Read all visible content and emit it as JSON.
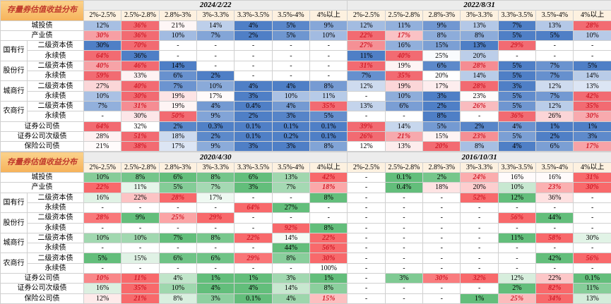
{
  "blocks": [
    {
      "title": "存量券估值收益分布",
      "scheme": {
        "low": "#4f7fc6",
        "high": "#f26b72"
      },
      "buckets": [
        "2%-2.5%",
        "2.5%-2.8%",
        "2.8%-3%",
        "3%-3.3%",
        "3.3%-3.5%",
        "3.5%-4%",
        "4%以上"
      ],
      "groups": [
        {
          "name": "城投债"
        },
        {
          "name": "产业债"
        },
        {
          "name": "国有行",
          "subs": [
            "二级资本债",
            "永续债"
          ]
        },
        {
          "name": "股份行",
          "subs": [
            "二级资本债",
            "永续债"
          ]
        },
        {
          "name": "城商行",
          "subs": [
            "二级资本债",
            "永续债"
          ]
        },
        {
          "name": "农商行",
          "subs": [
            "二级资本债",
            "永续债"
          ]
        },
        {
          "name": "证券公司债"
        },
        {
          "name": "证券公司次级债"
        },
        {
          "name": "保险公司债"
        }
      ],
      "panels": [
        {
          "date": "2024/2/22",
          "rows": [
            [
              "12%",
              "36%",
              "21%",
              "14%",
              "4%",
              "5%",
              "9%"
            ],
            [
              "30%",
              "36%",
              "10%",
              "7%",
              "2%",
              "5%",
              "10%"
            ],
            [
              "30%",
              "70%",
              "-",
              "-",
              "-",
              "-",
              "-"
            ],
            [
              "64%",
              "36%",
              "-",
              "-",
              "-",
              "-",
              "-"
            ],
            [
              "40%",
              "46%",
              "14%",
              "-",
              "-",
              "-",
              "-"
            ],
            [
              "59%",
              "33%",
              "6%",
              "2%",
              "-",
              "-",
              "-"
            ],
            [
              "27%",
              "40%",
              "7%",
              "10%",
              "4%",
              "4%",
              "8%"
            ],
            [
              "10%",
              "30%",
              "19%",
              "17%",
              "3%",
              "10%",
              "11%"
            ],
            [
              "7%",
              "31%",
              "19%",
              "4%",
              "0.4%",
              "4%",
              "35%"
            ],
            [
              "-",
              "30%",
              "50%",
              "9%",
              "2%",
              "3%",
              "5%"
            ],
            [
              "64%",
              "32%",
              "2%",
              "0.3%",
              "0.1%",
              "0.1%",
              "0.1%"
            ],
            [
              "28%",
              "51%",
              "18%",
              "2%",
              "0.1%",
              "0.2%",
              "0.1%"
            ],
            [
              "21%",
              "38%",
              "17%",
              "9%",
              "3%",
              "3%",
              "8%"
            ]
          ]
        },
        {
          "date": "2022/8/31",
          "rows": [
            [
              "12%",
              "11%",
              "9%",
              "13%",
              "7%",
              "13%",
              "28%"
            ],
            [
              "22%",
              "17%",
              "8%",
              "8%",
              "5%",
              "5%",
              "10%"
            ],
            [
              "27%",
              "16%",
              "15%",
              "13%",
              "29%",
              "-",
              "-"
            ],
            [
              "11%",
              "40%",
              "25%",
              "20%",
              "-",
              "-",
              "-"
            ],
            [
              "31%",
              "19%",
              "6%",
              "28%",
              "5%",
              "7%",
              "5%"
            ],
            [
              "7%",
              "35%",
              "20%",
              "14%",
              "5%",
              "7%",
              "14%"
            ],
            [
              "12%",
              "19%",
              "17%",
              "28%",
              "3%",
              "12%",
              "13%"
            ],
            [
              "-",
              "10%",
              "3%",
              "23%",
              "5%",
              "7%",
              "42%"
            ],
            [
              "13%",
              "6%",
              "2%",
              "26%",
              "5%",
              "12%",
              "35%"
            ],
            [
              "-",
              "-",
              "8%",
              "-",
              "36%",
              "26%",
              "30%"
            ],
            [
              "39%",
              "14%",
              "5%",
              "2%",
              "4%",
              "1%",
              "1%"
            ],
            [
              "26%",
              "21%",
              "15%",
              "23%",
              "5%",
              "2%",
              "3%"
            ],
            [
              "12%",
              "13%",
              "20%",
              "8%",
              "4%",
              "6%",
              "17%"
            ]
          ]
        }
      ]
    },
    {
      "title": "存量券估值收益分布",
      "scheme": {
        "low": "#63be7b",
        "high": "#f8696b"
      },
      "buckets": [
        "2%-2.5%",
        "2.5%-2.8%",
        "2.8%-3%",
        "3%-3.3%",
        "3.3%-3.5%",
        "3.5%-4%",
        "4%以上"
      ],
      "groups": [
        {
          "name": "城投债"
        },
        {
          "name": "产业债"
        },
        {
          "name": "国有行",
          "subs": [
            "二级资本债",
            "永续债"
          ]
        },
        {
          "name": "股份行",
          "subs": [
            "二级资本债",
            "永续债"
          ]
        },
        {
          "name": "城商行",
          "subs": [
            "二级资本债",
            "永续债"
          ]
        },
        {
          "name": "农商行",
          "subs": [
            "二级资本债",
            "永续债"
          ]
        },
        {
          "name": "证券公司债"
        },
        {
          "name": "证券公司次级债"
        },
        {
          "name": "保险公司债"
        }
      ],
      "panels": [
        {
          "date": "2020/4/30",
          "rows": [
            [
              "10%",
              "8%",
              "6%",
              "8%",
              "6%",
              "13%",
              "42%"
            ],
            [
              "22%",
              "11%",
              "5%",
              "7%",
              "3%",
              "7%",
              "18%"
            ],
            [
              "16%",
              "22%",
              "28%",
              "17%",
              "-",
              "-",
              "8%"
            ],
            [
              "-",
              "-",
              "-",
              "-",
              "64%",
              "27%",
              "-"
            ],
            [
              "28%",
              "9%",
              "25%",
              "29%",
              "-",
              "-",
              "-"
            ],
            [
              "-",
              "-",
              "-",
              "-",
              "-",
              "92%",
              "8%"
            ],
            [
              "10%",
              "10%",
              "7%",
              "8%",
              "22%",
              "14%",
              "22%"
            ],
            [
              "-",
              "-",
              "-",
              "-",
              "-",
              "44%",
              "56%"
            ],
            [
              "5%",
              "15%",
              "6%",
              "6%",
              "29%",
              "8%",
              "30%"
            ],
            [
              "-",
              "-",
              "-",
              "-",
              "-",
              "-",
              "100%"
            ],
            [
              "10%",
              "11%",
              "4%",
              "1%",
              "1%",
              "3%",
              "1%"
            ],
            [
              "16%",
              "35%",
              "10%",
              "4%",
              "4%",
              "14%",
              "8%"
            ],
            [
              "12%",
              "21%",
              "8%",
              "3%",
              "0.1%",
              "4%",
              "15%"
            ]
          ]
        },
        {
          "date": "2016/10/31",
          "rows": [
            [
              "-",
              "0.1%",
              "2%",
              "24%",
              "16%",
              "16%",
              "31%"
            ],
            [
              "-",
              "0.4%",
              "18%",
              "20%",
              "10%",
              "23%",
              "30%"
            ],
            [
              "-",
              "-",
              "-",
              "52%",
              "12%",
              "36%",
              "-"
            ],
            [
              "-",
              "-",
              "-",
              "-",
              "-",
              "-",
              "-"
            ],
            [
              "-",
              "-",
              "-",
              "-",
              "56%",
              "44%",
              "-"
            ],
            [
              "-",
              "-",
              "-",
              "-",
              "-",
              "-",
              "-"
            ],
            [
              "-",
              "-",
              "-",
              "-",
              "11%",
              "58%",
              "30%"
            ],
            [
              "-",
              "-",
              "-",
              "-",
              "-",
              "-",
              "-"
            ],
            [
              "-",
              "-",
              "-",
              "-",
              "-",
              "42%",
              "56%"
            ],
            [
              "-",
              "-",
              "-",
              "-",
              "-",
              "-",
              "-"
            ],
            [
              "-",
              "3%",
              "30%",
              "32%",
              "12%",
              "22%",
              "0.1%"
            ],
            [
              "-",
              "-",
              "-",
              "-",
              "2%",
              "82%",
              "11%"
            ],
            [
              "-",
              "-",
              "-",
              "1%",
              "25%",
              "34%",
              "13%"
            ]
          ]
        }
      ]
    }
  ]
}
